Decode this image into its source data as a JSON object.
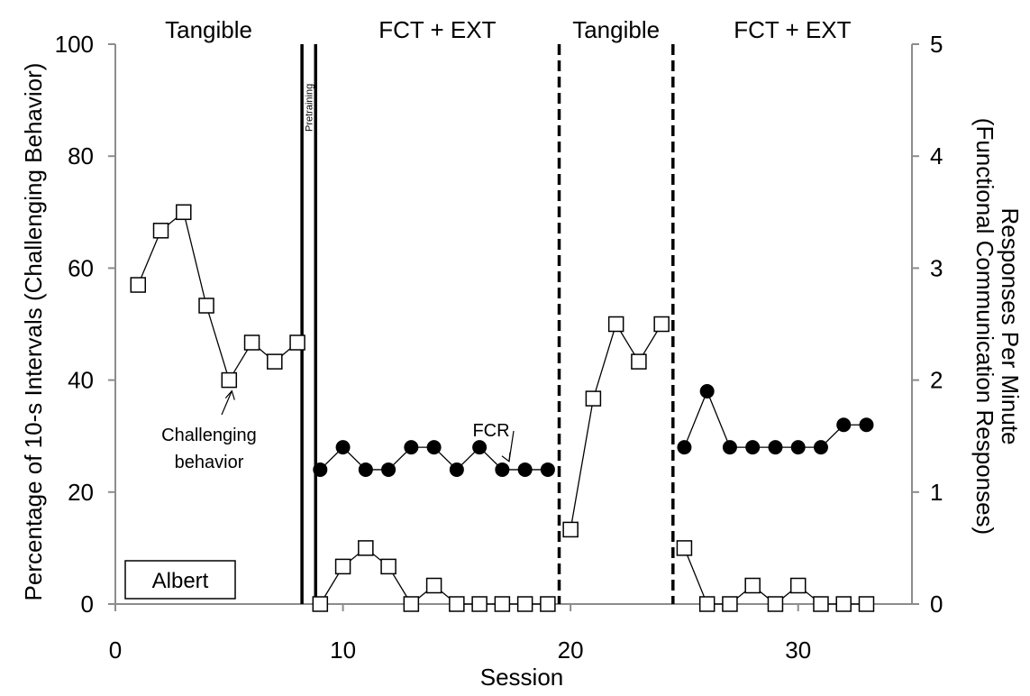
{
  "chart_data": {
    "type": "line",
    "participant_label": "Albert",
    "xlabel": "Session",
    "ylabel_left": "Percentage of 10-s Intervals (Challenging Behavior)",
    "ylabel_right_line1": "Responses Per Minute",
    "ylabel_right_line2": "(Functional Communication Responses)",
    "xlim": [
      0,
      35
    ],
    "ylim_left": [
      0,
      100
    ],
    "ylim_right": [
      0,
      5
    ],
    "x_ticks": [
      "0",
      "10",
      "20",
      "30"
    ],
    "y_left_ticks": [
      "0",
      "20",
      "40",
      "60",
      "80",
      "100"
    ],
    "y_right_ticks": [
      "0",
      "1",
      "2",
      "3",
      "4",
      "5"
    ],
    "grid": false,
    "phases": [
      {
        "label": "Tangible",
        "x_start": 0,
        "x_end": 8.2
      },
      {
        "label": "Pretraining",
        "x_start": 8.2,
        "x_end": 8.8
      },
      {
        "label": "FCT + EXT",
        "x_start": 8.8,
        "x_end": 19.5
      },
      {
        "label": "Tangible",
        "x_start": 19.5,
        "x_end": 24.5
      },
      {
        "label": "FCT + EXT",
        "x_start": 24.5,
        "x_end": 35
      }
    ],
    "phase_lines": [
      {
        "x": 8.2,
        "style": "solid"
      },
      {
        "x": 8.8,
        "style": "solid"
      },
      {
        "x": 19.5,
        "style": "dashed"
      },
      {
        "x": 24.5,
        "style": "dashed"
      }
    ],
    "series": [
      {
        "axis": "left",
        "marker": "open-square",
        "segments": [
          {
            "x": [
              1,
              2,
              3,
              4,
              5,
              6,
              7,
              8
            ],
            "y": [
              57,
              66.7,
              70,
              53.3,
              40,
              46.7,
              43.3,
              46.7
            ]
          },
          {
            "x": [
              9,
              10,
              11,
              12,
              13,
              14,
              15,
              16,
              17,
              18,
              19
            ],
            "y": [
              0,
              6.7,
              10,
              6.7,
              0,
              3.3,
              0,
              0,
              0,
              0,
              0
            ]
          },
          {
            "x": [
              20,
              21,
              22,
              23,
              24
            ],
            "y": [
              13.3,
              36.7,
              50,
              43.3,
              50
            ]
          },
          {
            "x": [
              25,
              26,
              27,
              28,
              29,
              30,
              31,
              32,
              33
            ],
            "y": [
              10,
              0,
              0,
              3.3,
              0,
              3.3,
              0,
              0,
              0
            ]
          }
        ]
      },
      {
        "axis": "right",
        "marker": "filled-circle",
        "segments": [
          {
            "x": [
              9,
              10,
              11,
              12,
              13,
              14,
              15,
              16,
              17,
              18,
              19
            ],
            "y": [
              1.2,
              1.4,
              1.2,
              1.2,
              1.4,
              1.4,
              1.2,
              1.4,
              1.2,
              1.2,
              1.2
            ]
          },
          {
            "x": [
              25,
              26,
              27,
              28,
              29,
              30,
              31,
              32,
              33
            ],
            "y": [
              1.4,
              1.9,
              1.4,
              1.4,
              1.4,
              1.4,
              1.4,
              1.6,
              1.6
            ]
          }
        ]
      }
    ],
    "annotations": [
      {
        "text_lines": [
          "Challenging",
          "behavior"
        ],
        "arrow_to_x": 5,
        "arrow_to_y_left": 40
      },
      {
        "text_lines": [
          "FCR"
        ],
        "arrow_to_x": 17.3,
        "arrow_to_y_right": 1.25
      }
    ]
  }
}
